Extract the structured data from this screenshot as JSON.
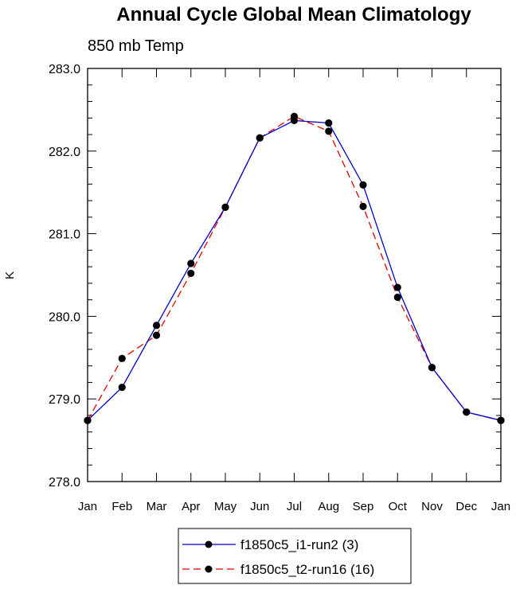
{
  "chart_data": {
    "type": "line",
    "title": "Annual Cycle Global Mean Climatology",
    "subtitle": "850 mb Temp",
    "xlabel": "",
    "ylabel": "K",
    "categories": [
      "Jan",
      "Feb",
      "Mar",
      "Apr",
      "May",
      "Jun",
      "Jul",
      "Aug",
      "Sep",
      "Oct",
      "Nov",
      "Dec",
      "Jan"
    ],
    "ylim": [
      278.0,
      283.0
    ],
    "yticks": [
      "278.0",
      "279.0",
      "280.0",
      "281.0",
      "282.0",
      "283.0"
    ],
    "grid": false,
    "legend_position": "bottom",
    "series": [
      {
        "name": "f1850c5_i1-run2 (3)",
        "color": "#0000cc",
        "dash": "solid",
        "marker": "circle",
        "values": [
          278.74,
          279.14,
          279.89,
          280.64,
          281.32,
          282.16,
          282.37,
          282.34,
          281.59,
          280.35,
          279.38,
          278.84,
          278.74
        ]
      },
      {
        "name": "f1850c5_t2-run16 (16)",
        "color": "#e00000",
        "dash": "dashed",
        "marker": "circle",
        "values": [
          278.74,
          279.49,
          279.77,
          280.52,
          281.32,
          282.16,
          282.42,
          282.24,
          281.33,
          280.23,
          279.38,
          278.84,
          278.74
        ]
      }
    ]
  }
}
